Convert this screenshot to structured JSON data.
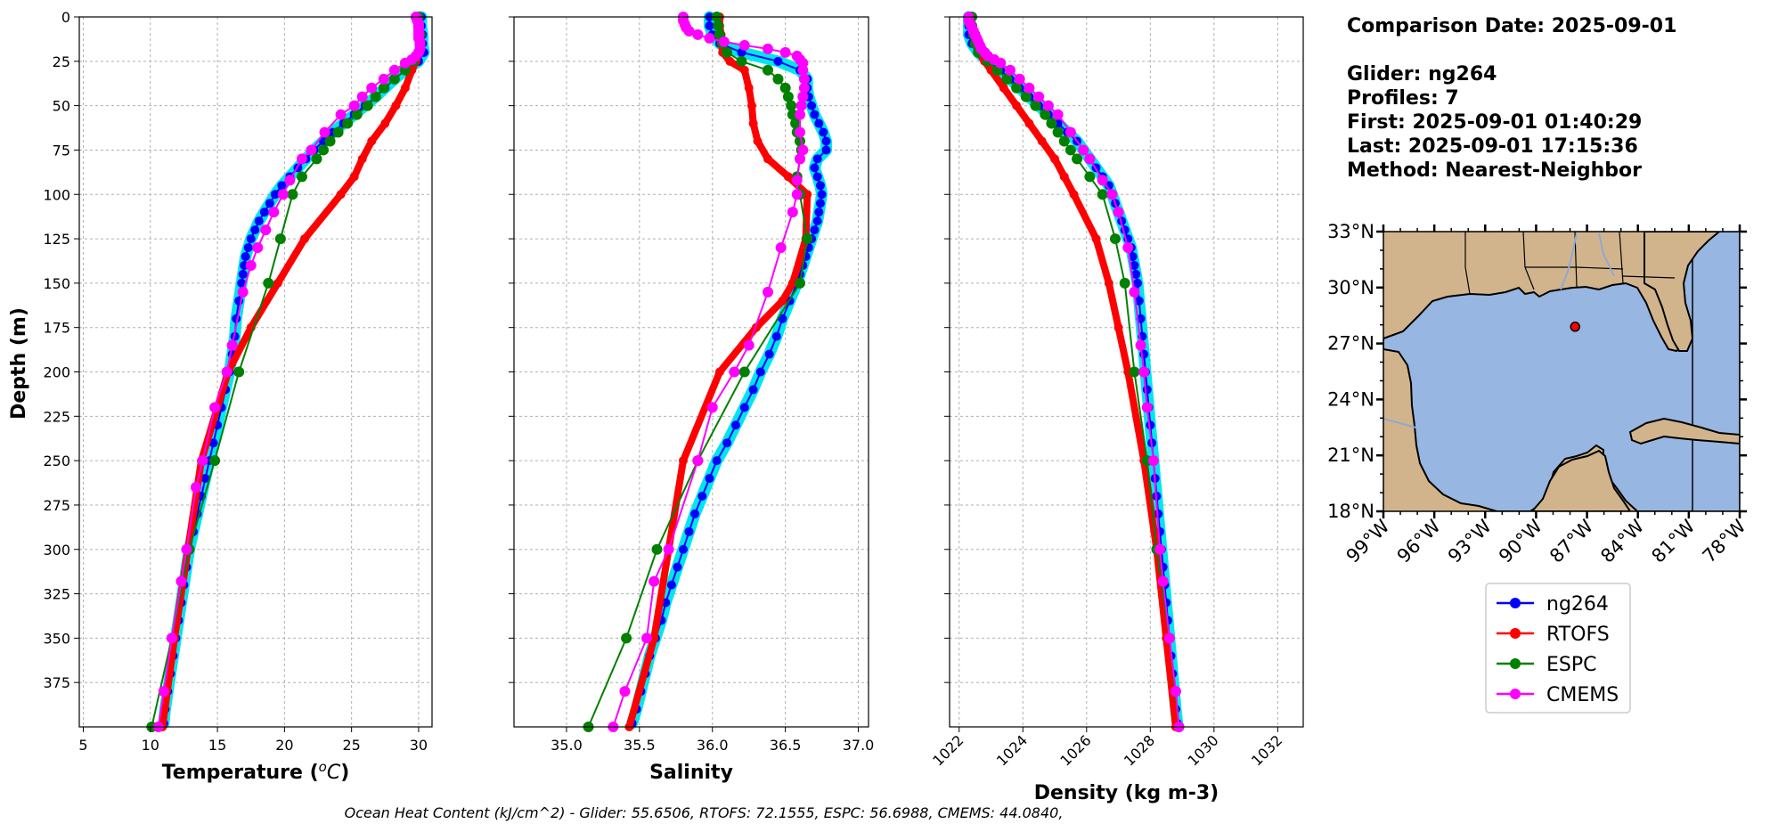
{
  "info": {
    "lines": [
      "Comparison Date: 2025-09-01",
      "",
      "Glider: ng264",
      "Profiles: 7",
      "First: 2025-09-01 01:40:29",
      "Last: 2025-09-01 17:15:36",
      "Method: Nearest-Neighbor"
    ]
  },
  "footer": "Ocean Heat Content (kJ/cm^2) - Glider: 55.6506,  RTOFS: 72.1555,  ESPC: 56.6988,  CMEMS: 44.0840,",
  "colors": {
    "glider": "#0000ff",
    "glider_halo": "#00e5ee",
    "rtofs": "#ff0000",
    "espc": "#008000",
    "cmems": "#ff00ff",
    "land": "#d2b48c",
    "ocean": "#97b6e1"
  },
  "map": {
    "title": "",
    "lat_labels": [
      "33°N",
      "30°N",
      "27°N",
      "24°N",
      "21°N",
      "18°N"
    ],
    "lon_labels": [
      "99°W",
      "96°W",
      "93°W",
      "90°W",
      "87°W",
      "84°W",
      "81°W",
      "78°W"
    ],
    "lat_range": [
      18,
      33
    ],
    "lon_range": [
      -99,
      -78
    ],
    "marker": {
      "lon": -87.7,
      "lat": 27.9
    }
  },
  "legend": [
    {
      "key": "glider",
      "label": "ng264"
    },
    {
      "key": "rtofs",
      "label": "RTOFS"
    },
    {
      "key": "espc",
      "label": "ESPC"
    },
    {
      "key": "cmems",
      "label": "CMEMS"
    }
  ],
  "chart_data": [
    {
      "type": "line",
      "title": "",
      "xlabel": "Temperature (°C)",
      "ylabel": "Depth (m)",
      "xlim": [
        4.7,
        31
      ],
      "ylim": [
        400,
        0
      ],
      "xticks": [
        5,
        10,
        15,
        20,
        25,
        30
      ],
      "yticks": [
        0,
        25,
        50,
        75,
        100,
        125,
        150,
        175,
        200,
        225,
        250,
        275,
        300,
        325,
        350,
        375
      ],
      "grid": true,
      "series": [
        {
          "name": "ng264",
          "key": "glider",
          "depth": [
            0,
            5,
            10,
            15,
            20,
            25,
            30,
            35,
            40,
            45,
            50,
            55,
            60,
            65,
            70,
            75,
            80,
            85,
            90,
            95,
            100,
            105,
            110,
            115,
            120,
            125,
            130,
            135,
            140,
            145,
            150,
            160,
            170,
            180,
            190,
            200,
            210,
            220,
            230,
            240,
            250,
            260,
            270,
            280,
            290,
            300,
            310,
            320,
            330,
            340,
            350,
            360,
            370,
            380,
            390,
            398
          ],
          "values": [
            30.2,
            30.2,
            30.3,
            30.3,
            30.4,
            30.0,
            29.0,
            28.2,
            27.5,
            26.8,
            26.0,
            25.2,
            24.4,
            23.6,
            22.9,
            22.2,
            21.6,
            21.0,
            20.4,
            19.8,
            19.3,
            18.9,
            18.5,
            18.1,
            17.8,
            17.5,
            17.3,
            17.1,
            17.0,
            16.9,
            16.8,
            16.6,
            16.4,
            16.3,
            16.1,
            15.9,
            15.6,
            15.3,
            15.0,
            14.7,
            14.4,
            14.1,
            13.8,
            13.5,
            13.2,
            12.9,
            12.7,
            12.5,
            12.3,
            12.1,
            11.9,
            11.7,
            11.5,
            11.3,
            11.1,
            11.0
          ]
        },
        {
          "name": "RTOFS",
          "key": "rtofs",
          "depth": [
            0,
            5,
            10,
            15,
            20,
            25,
            30,
            40,
            50,
            60,
            70,
            80,
            90,
            100,
            125,
            150,
            175,
            200,
            250,
            300,
            350,
            400
          ],
          "values": [
            30.0,
            30.0,
            30.1,
            30.1,
            30.0,
            29.8,
            29.5,
            29.0,
            28.3,
            27.5,
            26.5,
            25.8,
            25.2,
            24.2,
            21.5,
            19.5,
            17.5,
            15.8,
            13.8,
            12.8,
            11.8,
            10.9
          ]
        },
        {
          "name": "ESPC",
          "key": "espc",
          "depth": [
            0,
            5,
            10,
            15,
            20,
            25,
            30,
            35,
            40,
            45,
            50,
            55,
            60,
            65,
            70,
            75,
            80,
            90,
            100,
            125,
            150,
            200,
            250,
            300,
            350,
            400
          ],
          "values": [
            30.0,
            30.0,
            30.1,
            30.1,
            30.0,
            29.6,
            29.0,
            28.2,
            27.4,
            26.8,
            26.2,
            25.4,
            24.7,
            24.0,
            23.4,
            22.9,
            22.4,
            21.3,
            20.6,
            19.7,
            18.8,
            16.6,
            14.8,
            12.9,
            11.6,
            10.1
          ]
        },
        {
          "name": "CMEMS",
          "key": "cmems",
          "depth": [
            0,
            2,
            4,
            6,
            8,
            10,
            12,
            14,
            16,
            18,
            20,
            22,
            24,
            26,
            30,
            35,
            40,
            45,
            50,
            55,
            65,
            75,
            80,
            92,
            100,
            110,
            120,
            130,
            140,
            155,
            185,
            200,
            220,
            250,
            265,
            300,
            318,
            350,
            380,
            400
          ],
          "values": [
            29.8,
            29.9,
            30.0,
            30.0,
            30.0,
            30.0,
            30.0,
            30.1,
            30.1,
            30.1,
            30.0,
            29.8,
            29.5,
            29.0,
            28.2,
            27.4,
            26.5,
            25.8,
            25.2,
            24.2,
            23.0,
            22.0,
            21.3,
            20.4,
            19.9,
            19.2,
            18.6,
            18.0,
            17.5,
            16.9,
            16.1,
            15.7,
            14.8,
            13.9,
            13.4,
            12.7,
            12.3,
            11.6,
            11.0,
            10.6
          ]
        }
      ]
    },
    {
      "type": "line",
      "title": "",
      "xlabel": "Salinity",
      "ylabel": "",
      "xlim": [
        34.64,
        37.07
      ],
      "ylim": [
        400,
        0
      ],
      "xticks": [
        35.0,
        35.5,
        36.0,
        36.5,
        37.0
      ],
      "grid": true,
      "series": [
        {
          "name": "ng264",
          "key": "glider",
          "depth": [
            0,
            5,
            10,
            15,
            20,
            25,
            30,
            35,
            40,
            45,
            50,
            55,
            60,
            65,
            70,
            75,
            80,
            85,
            90,
            95,
            100,
            105,
            110,
            115,
            120,
            125,
            130,
            135,
            140,
            145,
            150,
            160,
            170,
            180,
            190,
            200,
            210,
            220,
            230,
            240,
            250,
            260,
            270,
            280,
            290,
            300,
            310,
            320,
            330,
            340,
            350,
            360,
            370,
            380,
            390,
            398
          ],
          "values": [
            35.98,
            35.98,
            36.0,
            36.05,
            36.2,
            36.45,
            36.6,
            36.65,
            36.65,
            36.66,
            36.68,
            36.7,
            36.73,
            36.76,
            36.78,
            36.78,
            36.72,
            36.7,
            36.72,
            36.74,
            36.75,
            36.74,
            36.73,
            36.72,
            36.7,
            36.68,
            36.66,
            36.64,
            36.62,
            36.6,
            36.58,
            36.53,
            36.48,
            36.44,
            36.39,
            36.33,
            36.28,
            36.22,
            36.16,
            36.1,
            36.03,
            35.98,
            35.93,
            35.88,
            35.84,
            35.8,
            35.76,
            35.72,
            35.68,
            35.65,
            35.61,
            35.57,
            35.54,
            35.51,
            35.48,
            35.45
          ]
        },
        {
          "name": "RTOFS",
          "key": "rtofs",
          "depth": [
            0,
            5,
            10,
            15,
            20,
            25,
            30,
            40,
            50,
            60,
            70,
            80,
            90,
            100,
            125,
            150,
            160,
            175,
            200,
            250,
            300,
            350,
            400
          ],
          "values": [
            36.05,
            36.05,
            36.06,
            36.06,
            36.07,
            36.12,
            36.22,
            36.25,
            36.27,
            36.28,
            36.31,
            36.38,
            36.52,
            36.65,
            36.64,
            36.55,
            36.48,
            36.3,
            36.05,
            35.8,
            35.7,
            35.6,
            35.43
          ]
        },
        {
          "name": "ESPC",
          "key": "espc",
          "depth": [
            0,
            5,
            10,
            15,
            20,
            25,
            30,
            35,
            40,
            45,
            50,
            55,
            60,
            65,
            70,
            75,
            80,
            90,
            100,
            125,
            150,
            200,
            250,
            300,
            350,
            400
          ],
          "values": [
            36.03,
            36.04,
            36.05,
            36.07,
            36.1,
            36.2,
            36.38,
            36.45,
            36.5,
            36.52,
            36.54,
            36.55,
            36.57,
            36.58,
            36.6,
            36.61,
            36.6,
            36.58,
            36.6,
            36.65,
            36.6,
            36.22,
            35.9,
            35.62,
            35.41,
            35.15
          ]
        },
        {
          "name": "CMEMS",
          "key": "cmems",
          "depth": [
            0,
            2,
            4,
            6,
            8,
            10,
            12,
            14,
            16,
            18,
            20,
            22,
            24,
            26,
            30,
            35,
            40,
            45,
            50,
            55,
            65,
            75,
            80,
            92,
            100,
            110,
            130,
            155,
            185,
            200,
            220,
            250,
            300,
            318,
            350,
            380,
            400
          ],
          "values": [
            35.8,
            35.8,
            35.81,
            35.82,
            35.84,
            35.9,
            35.98,
            36.08,
            36.22,
            36.38,
            36.5,
            36.58,
            36.6,
            36.62,
            36.62,
            36.63,
            36.63,
            36.62,
            36.61,
            36.6,
            36.6,
            36.62,
            36.6,
            36.58,
            36.58,
            36.55,
            36.47,
            36.38,
            36.25,
            36.15,
            36.0,
            35.9,
            35.7,
            35.6,
            35.55,
            35.4,
            35.32
          ]
        }
      ]
    },
    {
      "type": "line",
      "title": "",
      "xlabel": "Density (kg m-3)",
      "ylabel": "",
      "xlim": [
        1021.7,
        1032.8
      ],
      "ylim": [
        400,
        0
      ],
      "xticks": [
        1022,
        1024,
        1026,
        1028,
        1030,
        1032
      ],
      "grid": true,
      "series": [
        {
          "name": "ng264",
          "key": "glider",
          "depth": [
            0,
            5,
            10,
            15,
            20,
            25,
            30,
            35,
            40,
            45,
            50,
            55,
            60,
            65,
            70,
            75,
            80,
            85,
            90,
            95,
            100,
            105,
            110,
            115,
            120,
            125,
            130,
            135,
            140,
            145,
            150,
            160,
            170,
            180,
            190,
            200,
            210,
            220,
            230,
            240,
            250,
            260,
            270,
            280,
            290,
            300,
            310,
            320,
            330,
            340,
            350,
            360,
            370,
            380,
            390,
            398
          ],
          "values": [
            1022.3,
            1022.3,
            1022.3,
            1022.4,
            1022.6,
            1022.9,
            1023.3,
            1023.6,
            1023.9,
            1024.2,
            1024.5,
            1024.8,
            1025.1,
            1025.4,
            1025.7,
            1025.9,
            1026.1,
            1026.3,
            1026.5,
            1026.7,
            1026.8,
            1026.9,
            1027.0,
            1027.1,
            1027.2,
            1027.3,
            1027.4,
            1027.45,
            1027.5,
            1027.55,
            1027.6,
            1027.65,
            1027.7,
            1027.75,
            1027.8,
            1027.85,
            1027.9,
            1027.95,
            1028.0,
            1028.05,
            1028.1,
            1028.15,
            1028.2,
            1028.25,
            1028.3,
            1028.35,
            1028.4,
            1028.45,
            1028.5,
            1028.55,
            1028.6,
            1028.65,
            1028.7,
            1028.75,
            1028.8,
            1028.85
          ]
        },
        {
          "name": "RTOFS",
          "key": "rtofs",
          "depth": [
            0,
            5,
            10,
            15,
            20,
            25,
            30,
            40,
            50,
            60,
            70,
            80,
            90,
            100,
            125,
            150,
            175,
            200,
            250,
            300,
            350,
            400
          ],
          "values": [
            1022.4,
            1022.4,
            1022.45,
            1022.5,
            1022.6,
            1022.8,
            1023.0,
            1023.4,
            1023.8,
            1024.2,
            1024.6,
            1025.0,
            1025.3,
            1025.6,
            1026.3,
            1026.7,
            1027.0,
            1027.3,
            1027.8,
            1028.2,
            1028.5,
            1028.8
          ]
        },
        {
          "name": "ESPC",
          "key": "espc",
          "depth": [
            0,
            5,
            10,
            15,
            20,
            25,
            30,
            35,
            40,
            45,
            50,
            55,
            60,
            65,
            70,
            75,
            80,
            90,
            100,
            125,
            150,
            200,
            250,
            300,
            350,
            400
          ],
          "values": [
            1022.4,
            1022.4,
            1022.45,
            1022.5,
            1022.6,
            1022.9,
            1023.2,
            1023.5,
            1023.8,
            1024.1,
            1024.4,
            1024.7,
            1024.9,
            1025.1,
            1025.3,
            1025.5,
            1025.7,
            1026.1,
            1026.5,
            1026.9,
            1027.2,
            1027.5,
            1027.9,
            1028.2,
            1028.6,
            1028.9
          ]
        },
        {
          "name": "CMEMS",
          "key": "cmems",
          "depth": [
            0,
            2,
            4,
            6,
            8,
            10,
            12,
            14,
            16,
            18,
            20,
            22,
            24,
            26,
            30,
            35,
            40,
            45,
            50,
            55,
            65,
            75,
            80,
            92,
            100,
            110,
            130,
            155,
            185,
            200,
            220,
            250,
            300,
            318,
            350,
            380,
            400
          ],
          "values": [
            1022.3,
            1022.3,
            1022.35,
            1022.4,
            1022.45,
            1022.5,
            1022.55,
            1022.6,
            1022.65,
            1022.7,
            1022.8,
            1022.9,
            1023.1,
            1023.3,
            1023.6,
            1023.9,
            1024.2,
            1024.5,
            1024.8,
            1025.1,
            1025.5,
            1025.9,
            1026.1,
            1026.5,
            1026.8,
            1027.0,
            1027.3,
            1027.5,
            1027.7,
            1027.8,
            1027.9,
            1028.1,
            1028.3,
            1028.4,
            1028.6,
            1028.8,
            1028.9
          ]
        }
      ]
    }
  ]
}
